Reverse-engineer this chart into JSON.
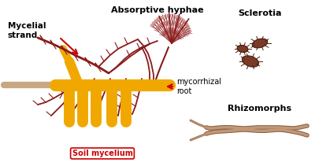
{
  "bg_color": "#ffffff",
  "dark_red": "#8B1A1A",
  "red_line": "#993333",
  "orange": "#F0A800",
  "light_orange": "#F5C842",
  "tan_root": "#C8A882",
  "scl_fill": "#7B3A28",
  "rhizo_fill": "#C09878",
  "rhizo_outline": "#8B6040",
  "arrow_red": "#CC0000",
  "label_mycelial": "Mycelial\nstrand",
  "label_absorptive": "Absorptive hyphae",
  "label_mycorrhizal": "mycorrhizal\nroot",
  "label_soil": "Soil mycelium",
  "label_sclerotia": "Sclerotia",
  "label_rhizomorphs": "Rhizomorphs"
}
